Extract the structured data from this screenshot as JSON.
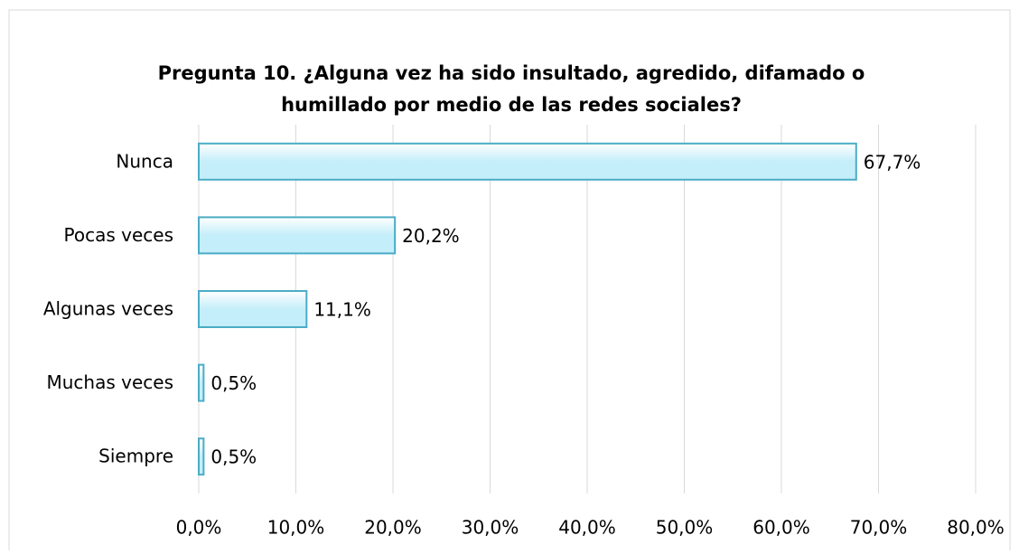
{
  "chart_data": {
    "type": "barh",
    "title": [
      "Pregunta 10. ¿Alguna vez ha sido insultado, agredido, difamado o",
      "humillado por medio de las redes sociales?"
    ],
    "categories": [
      "Nunca",
      "Pocas veces",
      "Algunas veces",
      "Muchas veces",
      "Siempre"
    ],
    "values": [
      67.7,
      20.2,
      11.1,
      0.5,
      0.5
    ],
    "value_labels": [
      "67,7%",
      "20,2%",
      "11,1%",
      "0,5%",
      "0,5%"
    ],
    "color": "#c4eef9",
    "edge_color": "#4bacc6",
    "xlim": [
      0,
      80
    ],
    "xticks": [
      {
        "value": 0,
        "label": "0,0%"
      },
      {
        "value": 10,
        "label": "10,0%"
      },
      {
        "value": 20,
        "label": "20,0%"
      },
      {
        "value": 30,
        "label": "30,0%"
      },
      {
        "value": 40,
        "label": "40,0%"
      },
      {
        "value": 50,
        "label": "50,0%"
      },
      {
        "value": 60,
        "label": "60,0%"
      },
      {
        "value": 70,
        "label": "70,0%"
      },
      {
        "value": 80,
        "label": "80,0%"
      }
    ],
    "grid": true
  }
}
